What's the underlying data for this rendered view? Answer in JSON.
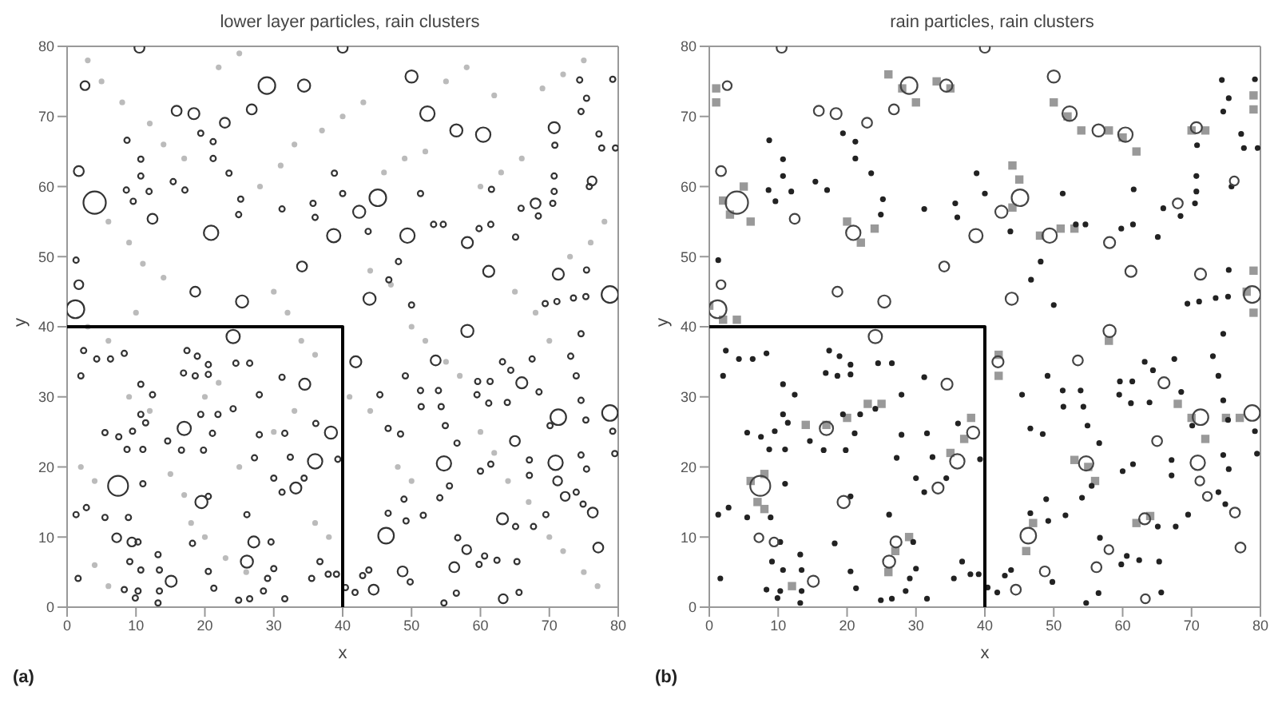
{
  "chart_data": [
    {
      "type": "scatter",
      "title": "lower layer particles, rain clusters",
      "xlabel": "x",
      "ylabel": "y",
      "xlim": [
        0,
        80
      ],
      "ylim": [
        0,
        80
      ],
      "xticks": [
        0,
        10,
        20,
        30,
        40,
        50,
        60,
        70,
        80
      ],
      "yticks": [
        0,
        10,
        20,
        30,
        40,
        50,
        60,
        70,
        80
      ],
      "annotations": [
        "(a)"
      ],
      "series": [
        {
          "type": "scatter",
          "marker": "circle",
          "color": "#bbbbbb",
          "x": [
            3,
            5,
            8,
            12,
            14,
            17,
            6,
            9,
            11,
            14,
            3,
            6,
            9,
            12,
            15,
            17,
            18,
            20,
            23,
            26,
            4,
            6,
            2,
            4,
            28,
            31,
            33,
            37,
            40,
            43,
            46,
            49,
            52,
            30,
            32,
            34,
            36,
            44,
            47,
            50,
            52,
            55,
            57,
            60,
            62,
            64,
            67,
            70,
            72,
            75,
            77,
            60,
            63,
            66,
            69,
            72,
            75,
            78,
            76,
            73,
            55,
            58,
            62,
            22,
            25,
            30,
            33,
            36,
            38,
            48,
            50,
            44,
            41,
            65,
            68,
            70,
            20,
            22,
            25,
            10
          ],
          "values": [
            78,
            75,
            72,
            69,
            66,
            64,
            55,
            52,
            49,
            47,
            40,
            38,
            30,
            28,
            19,
            16,
            12,
            10,
            7,
            5,
            6,
            3,
            20,
            18,
            60,
            63,
            66,
            68,
            70,
            72,
            62,
            64,
            65,
            45,
            42,
            38,
            36,
            48,
            46,
            40,
            38,
            35,
            33,
            25,
            22,
            18,
            15,
            10,
            8,
            5,
            3,
            60,
            62,
            64,
            74,
            76,
            78,
            55,
            52,
            50,
            75,
            77,
            73,
            77,
            79,
            25,
            28,
            12,
            10,
            20,
            18,
            28,
            30,
            45,
            42,
            38,
            30,
            32,
            20,
            42
          ]
        },
        {
          "type": "bubble",
          "color": "#333333",
          "x": [
            4,
            7.4,
            1.2,
            29,
            45.1,
            78.8,
            78.8,
            71.3,
            70.9,
            54.7,
            46.3,
            52.3,
            60.4,
            56.5,
            49.4,
            38.7,
            20.9,
            58.1,
            34.4,
            50,
            70.7,
            24.1,
            25.4,
            43.9,
            42.4,
            17,
            19.5,
            36,
            38.3,
            34.5,
            26.1,
            27.1,
            15.1,
            33.2,
            63.2,
            76.3,
            56.2,
            48.7,
            63.3,
            66,
            65,
            61.2,
            58.1,
            71.3,
            76.2,
            68,
            53.5,
            41.9,
            34.1,
            18.6,
            1.7,
            1.7,
            2.6,
            10.5,
            40,
            26.8,
            15.9,
            18.4,
            22.9,
            12.4,
            77.1,
            44.5,
            71.2,
            72.3,
            58,
            9.4,
            7.2,
            1.3,
            8.7,
            10.7,
            10.7,
            8.6,
            9.6,
            11.9,
            15.4,
            17.1,
            19.4,
            21.2,
            21.2,
            23.5,
            25.2,
            24.9,
            31.2,
            35.7,
            38.8,
            40,
            36,
            43.7,
            48.1,
            46.7,
            50,
            53.2,
            51.3,
            54.6,
            59.8,
            61.5,
            61.6,
            65.9,
            65.1,
            68.4,
            70.5,
            70.7,
            70.7,
            70.8,
            75.8,
            77.6,
            79.6,
            74.6,
            75.4,
            74.4,
            79.2,
            77.2,
            69.4,
            71.1,
            73.5,
            75.3,
            75.4,
            74.6,
            73.1,
            73.9,
            74.6,
            75.3,
            74.6,
            75.4,
            79.2,
            79.5,
            73.9,
            74.9,
            69.5,
            67.7,
            65.1,
            60,
            61.5,
            55.5,
            54.1,
            56.7,
            49.2,
            48.9,
            46.6,
            49.8,
            42.9,
            43.8,
            40.4,
            41.8,
            59.8,
            60.6,
            62.4,
            65.3,
            65.6,
            54.7,
            56.5,
            51.7,
            48.4,
            46.6,
            45.4,
            49.1,
            51.3,
            53.9,
            51.4,
            54.3,
            54.9,
            56.6,
            59.5,
            61.2,
            63.9,
            59.6,
            61.4,
            63.2,
            64.4,
            67.5,
            68.5,
            70.1,
            67.1,
            67.1,
            2.4,
            8.3,
            6.3,
            4.3,
            2,
            10.7,
            12.4,
            10.7,
            11.4,
            9.5,
            7.5,
            5.5,
            8.7,
            11,
            14.6,
            16.6,
            19.8,
            21.1,
            21.9,
            24.1,
            19.4,
            20.5,
            17.4,
            18.9,
            16.9,
            18.6,
            20.5,
            24.5,
            26.5,
            27.9,
            31.2,
            31.6,
            27.9,
            27.2,
            30,
            31.2,
            34.4,
            32.4,
            36.1,
            39.3,
            26.1,
            29.6,
            29.1,
            30,
            28.5,
            24.9,
            26.5,
            31.6,
            35.5,
            36.7,
            37.9,
            39.1,
            20.5,
            21.3,
            13.4,
            13.4,
            13.2,
            10.7,
            10.3,
            9.9,
            8.3,
            1.6,
            9.1,
            10.3,
            8.9,
            5.5,
            2.8,
            1.3,
            11,
            18.2,
            20.5,
            13.2
          ],
          "values": [
            57.7,
            17.3,
            42.5,
            74.4,
            58.4,
            44.6,
            27.7,
            27.1,
            20.6,
            20.5,
            10.2,
            70.4,
            67.4,
            68,
            53,
            53,
            53.4,
            39.4,
            74.4,
            75.7,
            68.4,
            38.6,
            43.6,
            44,
            56.4,
            25.5,
            15,
            20.8,
            24.9,
            31.8,
            6.5,
            9.3,
            3.7,
            17,
            12.6,
            13.5,
            5.7,
            5.1,
            1.2,
            32,
            23.7,
            47.9,
            52,
            47.5,
            60.8,
            57.6,
            35.2,
            35,
            48.6,
            45,
            46,
            62.2,
            74.4,
            79.8,
            79.8,
            71,
            70.8,
            70.4,
            69.1,
            55.4,
            8.5,
            2.5,
            18,
            15.8,
            8.2,
            9.3,
            9.9,
            49.5,
            66.6,
            63.9,
            61.5,
            59.5,
            57.9,
            59.3,
            60.7,
            59.5,
            67.6,
            66.4,
            64,
            61.9,
            58.2,
            56,
            56.8,
            57.6,
            61.9,
            59,
            55.6,
            53.6,
            49.3,
            46.7,
            43.1,
            54.6,
            59,
            54.6,
            54,
            54.6,
            59.6,
            56.9,
            52.8,
            55.8,
            57.6,
            59.3,
            61.5,
            65.9,
            60,
            65.5,
            65.5,
            70.7,
            72.6,
            75.2,
            75.3,
            67.5,
            43.3,
            43.6,
            44.1,
            44.3,
            48.1,
            39,
            35.8,
            33,
            29.5,
            26.7,
            21.7,
            19.7,
            25.1,
            21.9,
            16.4,
            14.7,
            13.2,
            11.5,
            11.5,
            19.4,
            20.4,
            17.3,
            15.6,
            9.9,
            12.3,
            15.4,
            13.4,
            3.6,
            4.5,
            5.3,
            2.8,
            2.1,
            6.1,
            7.3,
            6.7,
            6.5,
            2.1,
            0.6,
            2,
            13.1,
            24.7,
            25.5,
            30.3,
            33,
            30.9,
            30.9,
            28.6,
            28.6,
            25.9,
            23.4,
            30.3,
            29.1,
            29.2,
            32.2,
            32.2,
            35,
            33.8,
            35.4,
            30.7,
            25.9,
            21,
            18.8,
            36.6,
            36.2,
            35.4,
            35.4,
            33,
            31.8,
            30.3,
            27.5,
            26.3,
            25.1,
            24.3,
            24.9,
            22.5,
            22.5,
            23.7,
            22.4,
            22.4,
            24.8,
            27.5,
            28.3,
            27.5,
            34.6,
            36.6,
            35.8,
            33.4,
            33,
            33.2,
            34.8,
            34.8,
            30.3,
            32.8,
            24.8,
            24.6,
            21.3,
            18.4,
            16.4,
            18.4,
            21.4,
            26.2,
            21.1,
            13.2,
            9.3,
            4.1,
            5.5,
            2.3,
            1,
            1.2,
            1.2,
            4.1,
            6.5,
            4.7,
            4.7,
            5.1,
            2.7,
            5.3,
            2.3,
            0.6,
            5.3,
            2.3,
            1.3,
            2.5,
            4.1,
            6.5,
            9.3,
            12.8,
            12.8,
            14.2,
            13.2,
            17.6,
            9.1,
            15.8,
            7.5
          ],
          "sizes": [
            1,
            0.8,
            0.64,
            0.56,
            0.56,
            0.56,
            0.49,
            0.49,
            0.42,
            0.42,
            0.49,
            0.42,
            0.42,
            0.3,
            0.42,
            0.36,
            0.42,
            0.3,
            0.3,
            0.3,
            0.25,
            0.36,
            0.3,
            0.3,
            0.3,
            0.36,
            0.3,
            0.42,
            0.3,
            0.25,
            0.3,
            0.25,
            0.25,
            0.25,
            0.25,
            0.2,
            0.2,
            0.2,
            0.16,
            0.25,
            0.2,
            0.25,
            0.25,
            0.25,
            0.16,
            0.2,
            0.2,
            0.25,
            0.2,
            0.2,
            0.16,
            0.2,
            0.16,
            0.2,
            0.2,
            0.2,
            0.2,
            0.25,
            0.2,
            0.2,
            0.2,
            0.2,
            0.16,
            0.16,
            0.16,
            0.16,
            0.16,
            0.06,
            0.06,
            0.06,
            0.06,
            0.06,
            0.06,
            0.06,
            0.06,
            0.06,
            0.06,
            0.06,
            0.06,
            0.06,
            0.06,
            0.06,
            0.06,
            0.06,
            0.06,
            0.06,
            0.06,
            0.06,
            0.06,
            0.06,
            0.06,
            0.06,
            0.06,
            0.06,
            0.06,
            0.06,
            0.06,
            0.06,
            0.06,
            0.06,
            0.06,
            0.06,
            0.06,
            0.06,
            0.06,
            0.06,
            0.06,
            0.06,
            0.06,
            0.06,
            0.06,
            0.06,
            0.06,
            0.06,
            0.06,
            0.06,
            0.06,
            0.06,
            0.06,
            0.06,
            0.06,
            0.06,
            0.06,
            0.06,
            0.06,
            0.06,
            0.06,
            0.06,
            0.06,
            0.06,
            0.06,
            0.06,
            0.06,
            0.06,
            0.06,
            0.06,
            0.06,
            0.06,
            0.06,
            0.06,
            0.06,
            0.06,
            0.06,
            0.06,
            0.06,
            0.06,
            0.06,
            0.06,
            0.06,
            0.06,
            0.06,
            0.06,
            0.06,
            0.06,
            0.06,
            0.06,
            0.06,
            0.06,
            0.06,
            0.06,
            0.06,
            0.06,
            0.06,
            0.06,
            0.06,
            0.06,
            0.06,
            0.06,
            0.06,
            0.06,
            0.06,
            0.06,
            0.06,
            0.06,
            0.06,
            0.06,
            0.06,
            0.06,
            0.06,
            0.06,
            0.06,
            0.06,
            0.06,
            0.06,
            0.06,
            0.06,
            0.06,
            0.06,
            0.06,
            0.06,
            0.06,
            0.06,
            0.06,
            0.06,
            0.06,
            0.06,
            0.06,
            0.06,
            0.06,
            0.06,
            0.06,
            0.06,
            0.06,
            0.06,
            0.06,
            0.06,
            0.06,
            0.06,
            0.06,
            0.06,
            0.06,
            0.06,
            0.06,
            0.06,
            0.06,
            0.06,
            0.06,
            0.06,
            0.06,
            0.06,
            0.06,
            0.06,
            0.06,
            0.06,
            0.06,
            0.06,
            0.06,
            0.06,
            0.06,
            0.06,
            0.06,
            0.06,
            0.06,
            0.06,
            0.06,
            0.06,
            0.06,
            0.06,
            0.06,
            0.06,
            0.06,
            0.06,
            0.06,
            0.06,
            0.06,
            0.06
          ]
        },
        {
          "type": "line",
          "color": "#000000",
          "x": [
            0,
            40,
            40
          ],
          "values": [
            40,
            40,
            0
          ]
        }
      ]
    },
    {
      "type": "scatter",
      "title": "rain particles, rain clusters",
      "xlabel": "x",
      "ylabel": "y",
      "xlim": [
        0,
        80
      ],
      "ylim": [
        0,
        80
      ],
      "xticks": [
        0,
        10,
        20,
        30,
        40,
        50,
        60,
        70,
        80
      ],
      "yticks": [
        0,
        10,
        20,
        30,
        40,
        50,
        60,
        70,
        80
      ],
      "annotations": [
        "(b)"
      ],
      "series": [
        {
          "type": "scatter",
          "marker": "square",
          "color": "#999999",
          "x": [
            2,
            3,
            5,
            6,
            6,
            8,
            7,
            8,
            0,
            2,
            4,
            20,
            22,
            24,
            44,
            45,
            44,
            48,
            51,
            53,
            55,
            53,
            56,
            70,
            68,
            72,
            78,
            79,
            79,
            28,
            30,
            26,
            52,
            50,
            54,
            60,
            58,
            62,
            35,
            33,
            27,
            26,
            29,
            35,
            37,
            38,
            17,
            14,
            20,
            23,
            25,
            46,
            47,
            42,
            42,
            58,
            12,
            64,
            62,
            1,
            1,
            72,
            70,
            75,
            77,
            79,
            79
          ],
          "values": [
            58,
            56,
            60,
            55,
            18,
            19,
            15,
            14,
            43,
            41,
            41,
            55,
            52,
            54,
            57,
            61,
            63,
            53,
            54,
            54,
            20,
            21,
            18,
            27,
            29,
            24,
            45,
            42,
            48,
            74,
            72,
            76,
            70,
            72,
            68,
            67,
            68,
            65,
            74,
            75,
            8,
            5,
            10,
            22,
            24,
            27,
            26,
            26,
            27,
            29,
            29,
            8,
            12,
            36,
            33,
            38,
            3,
            13,
            12,
            74,
            72,
            68,
            68,
            27,
            27,
            73,
            71
          ]
        },
        {
          "type": "scatter",
          "marker": "circle",
          "color": "#222222",
          "x": [
            1.3,
            8.7,
            10.7,
            10.7,
            8.6,
            9.6,
            11.9,
            15.4,
            17.1,
            19.4,
            21.2,
            21.2,
            23.5,
            25.2,
            24.9,
            31.2,
            35.7,
            38.8,
            40,
            36,
            43.7,
            48.1,
            46.7,
            50,
            53.2,
            51.3,
            54.6,
            59.8,
            61.5,
            61.6,
            65.9,
            65.1,
            68.4,
            70.5,
            70.7,
            70.7,
            70.8,
            75.8,
            77.6,
            79.6,
            74.6,
            75.4,
            74.4,
            79.2,
            77.2,
            69.4,
            71.1,
            73.5,
            75.3,
            75.4,
            74.6,
            73.1,
            73.9,
            74.6,
            75.3,
            74.6,
            75.4,
            79.2,
            79.5,
            73.9,
            74.9,
            69.5,
            67.7,
            65.1,
            60,
            61.5,
            55.5,
            54.1,
            56.7,
            49.2,
            48.9,
            46.6,
            49.8,
            42.9,
            43.8,
            40.4,
            41.8,
            59.8,
            60.6,
            62.4,
            65.3,
            65.6,
            54.7,
            56.5,
            51.7,
            48.4,
            46.6,
            45.4,
            49.1,
            51.3,
            53.9,
            51.4,
            54.3,
            54.9,
            56.6,
            59.5,
            61.2,
            63.9,
            59.6,
            61.4,
            63.2,
            64.4,
            67.5,
            68.5,
            70.1,
            67.1,
            67.1,
            2.4,
            8.3,
            6.3,
            4.3,
            2,
            10.7,
            12.4,
            10.7,
            11.4,
            9.5,
            7.5,
            5.5,
            8.7,
            11,
            14.6,
            16.6,
            19.8,
            21.1,
            21.9,
            24.1,
            19.4,
            20.5,
            17.4,
            18.9,
            16.9,
            18.6,
            20.5,
            24.5,
            26.5,
            27.9,
            31.2,
            31.6,
            27.9,
            27.2,
            30,
            31.2,
            34.4,
            32.4,
            36.1,
            39.3,
            26.1,
            29.6,
            29.1,
            30,
            28.5,
            24.9,
            26.5,
            31.6,
            35.5,
            36.7,
            37.9,
            39.1,
            20.5,
            21.3,
            13.4,
            13.4,
            13.2,
            10.7,
            10.3,
            9.9,
            8.3,
            1.6,
            9.1,
            10.3,
            8.9,
            5.5,
            2.8,
            1.3,
            11,
            18.2,
            20.5,
            13.2
          ],
          "values": [
            49.5,
            66.6,
            63.9,
            61.5,
            59.5,
            57.9,
            59.3,
            60.7,
            59.5,
            67.6,
            66.4,
            64,
            61.9,
            58.2,
            56,
            56.8,
            57.6,
            61.9,
            59,
            55.6,
            53.6,
            49.3,
            46.7,
            43.1,
            54.6,
            59,
            54.6,
            54,
            54.6,
            59.6,
            56.9,
            52.8,
            55.8,
            57.6,
            59.3,
            61.5,
            65.9,
            60,
            65.5,
            65.5,
            70.7,
            72.6,
            75.2,
            75.3,
            67.5,
            43.3,
            43.6,
            44.1,
            44.3,
            48.1,
            39,
            35.8,
            33,
            29.5,
            26.7,
            21.7,
            19.7,
            25.1,
            21.9,
            16.4,
            14.7,
            13.2,
            11.5,
            11.5,
            19.4,
            20.4,
            17.3,
            15.6,
            9.9,
            12.3,
            15.4,
            13.4,
            3.6,
            4.5,
            5.3,
            2.8,
            2.1,
            6.1,
            7.3,
            6.7,
            6.5,
            2.1,
            0.6,
            2,
            13.1,
            24.7,
            25.5,
            30.3,
            33,
            30.9,
            30.9,
            28.6,
            28.6,
            25.9,
            23.4,
            30.3,
            29.1,
            29.2,
            32.2,
            32.2,
            35,
            33.8,
            35.4,
            30.7,
            25.9,
            21,
            18.8,
            36.6,
            36.2,
            35.4,
            35.4,
            33,
            31.8,
            30.3,
            27.5,
            26.3,
            25.1,
            24.3,
            24.9,
            22.5,
            22.5,
            23.7,
            22.4,
            22.4,
            24.8,
            27.5,
            28.3,
            27.5,
            34.6,
            36.6,
            35.8,
            33.4,
            33,
            33.2,
            34.8,
            34.8,
            30.3,
            32.8,
            24.8,
            24.6,
            21.3,
            18.4,
            16.4,
            18.4,
            21.4,
            26.2,
            21.1,
            13.2,
            9.3,
            4.1,
            5.5,
            2.3,
            1,
            1.2,
            1.2,
            4.1,
            6.5,
            4.7,
            4.7,
            5.1,
            2.7,
            5.3,
            2.3,
            0.6,
            5.3,
            2.3,
            1.3,
            2.5,
            4.1,
            6.5,
            9.3,
            12.8,
            12.8,
            14.2,
            13.2,
            17.6,
            9.1,
            15.8,
            7.5
          ]
        },
        {
          "type": "bubble",
          "color": "#444444",
          "x": [
            4,
            7.4,
            1.2,
            29,
            45.1,
            78.8,
            78.8,
            71.3,
            70.9,
            54.7,
            46.3,
            52.3,
            60.4,
            56.5,
            49.4,
            38.7,
            20.9,
            58.1,
            34.4,
            50,
            70.7,
            24.1,
            25.4,
            43.9,
            42.4,
            17,
            19.5,
            36,
            38.3,
            34.5,
            26.1,
            27.1,
            15.1,
            33.2,
            63.2,
            76.3,
            56.2,
            48.7,
            63.3,
            66,
            65,
            61.2,
            58.1,
            71.3,
            76.2,
            68,
            53.5,
            41.9,
            34.1,
            18.6,
            1.7,
            1.7,
            2.6,
            10.5,
            40,
            26.8,
            15.9,
            18.4,
            22.9,
            12.4,
            77.1,
            44.5,
            71.2,
            72.3,
            58,
            9.4,
            7.2
          ],
          "values": [
            57.7,
            17.3,
            42.5,
            74.4,
            58.4,
            44.6,
            27.7,
            27.1,
            20.6,
            20.5,
            10.2,
            70.4,
            67.4,
            68,
            53,
            53,
            53.4,
            39.4,
            74.4,
            75.7,
            68.4,
            38.6,
            43.6,
            44,
            56.4,
            25.5,
            15,
            20.8,
            24.9,
            31.8,
            6.5,
            9.3,
            3.7,
            17,
            12.6,
            13.5,
            5.7,
            5.1,
            1.2,
            32,
            23.7,
            47.9,
            52,
            47.5,
            60.8,
            57.6,
            35.2,
            35,
            48.6,
            45,
            46,
            62.2,
            74.4,
            79.8,
            79.8,
            71,
            70.8,
            70.4,
            69.1,
            55.4,
            8.5,
            2.5,
            18,
            15.8,
            8.2,
            9.3,
            9.9
          ],
          "sizes": [
            1,
            0.8,
            0.64,
            0.56,
            0.56,
            0.56,
            0.49,
            0.49,
            0.42,
            0.42,
            0.49,
            0.42,
            0.42,
            0.3,
            0.42,
            0.36,
            0.42,
            0.3,
            0.3,
            0.3,
            0.25,
            0.36,
            0.3,
            0.3,
            0.3,
            0.36,
            0.3,
            0.42,
            0.3,
            0.25,
            0.3,
            0.25,
            0.25,
            0.25,
            0.25,
            0.2,
            0.2,
            0.2,
            0.16,
            0.25,
            0.2,
            0.25,
            0.25,
            0.25,
            0.16,
            0.2,
            0.2,
            0.25,
            0.2,
            0.2,
            0.16,
            0.2,
            0.16,
            0.2,
            0.2,
            0.2,
            0.2,
            0.25,
            0.2,
            0.2,
            0.2,
            0.2,
            0.16,
            0.16,
            0.16,
            0.16,
            0.16
          ]
        },
        {
          "type": "line",
          "color": "#000000",
          "x": [
            0,
            40,
            40
          ],
          "values": [
            40,
            40,
            0
          ]
        }
      ]
    }
  ]
}
